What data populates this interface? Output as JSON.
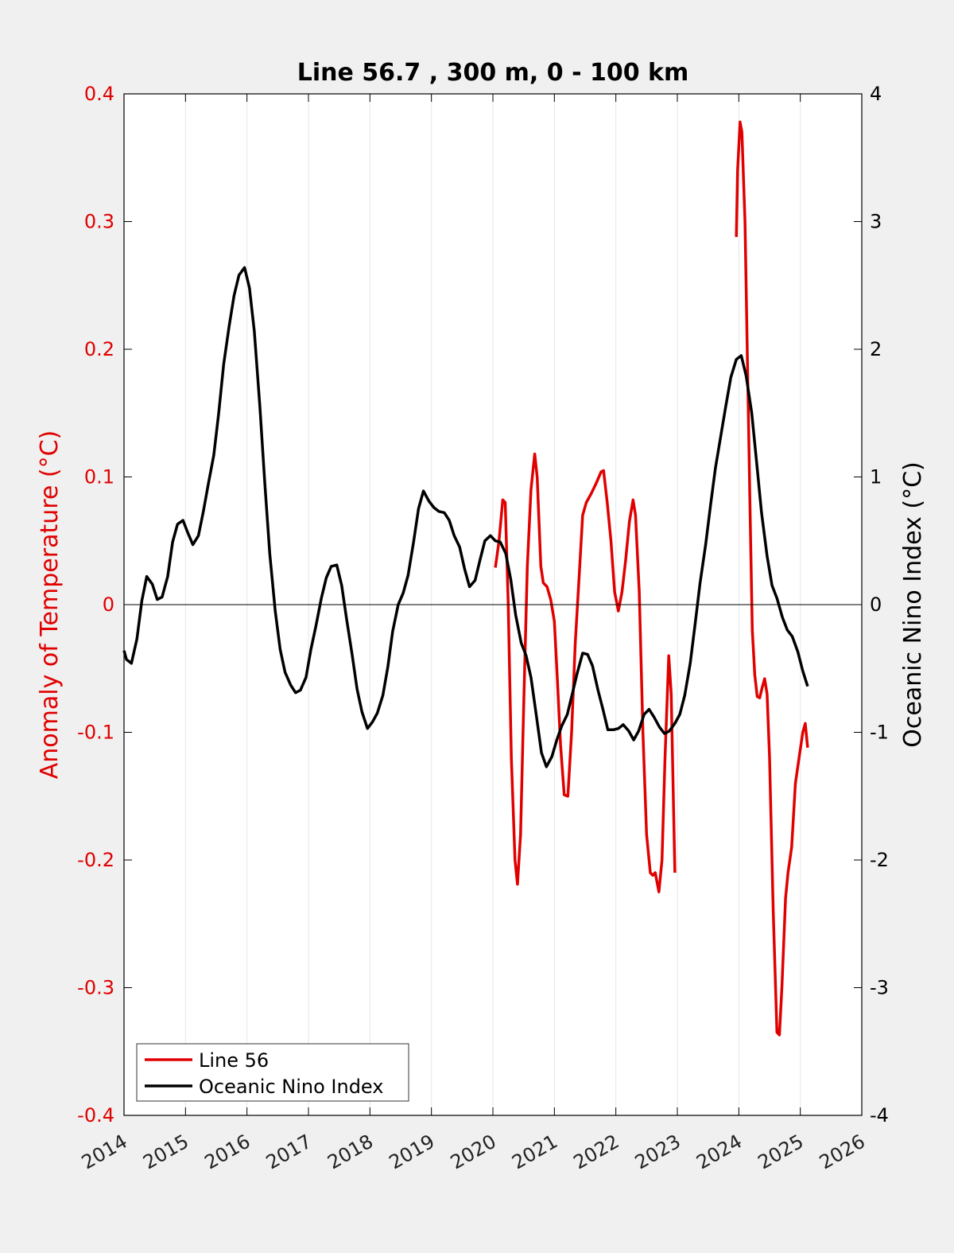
{
  "chart_data": {
    "type": "line",
    "title": "Line 56.7 , 300 m, 0 - 100 km",
    "xlabel": "",
    "xlim": [
      2014,
      2026
    ],
    "x_ticks": [
      "2014",
      "2015",
      "2016",
      "2017",
      "2018",
      "2019",
      "2020",
      "2021",
      "2022",
      "2023",
      "2024",
      "2025",
      "2026"
    ],
    "grid": "vertical",
    "legend_position": "bottom-left",
    "y_left": {
      "label": "Anomaly of Temperature (°C)",
      "ylim": [
        -0.4,
        0.4
      ],
      "ticks": [
        "-0.4",
        "-0.3",
        "-0.2",
        "-0.1",
        "0",
        "0.1",
        "0.2",
        "0.3",
        "0.4"
      ],
      "color": "#e00000"
    },
    "y_right": {
      "label": "Oceanic Nino Index (°C)",
      "ylim": [
        -4,
        4
      ],
      "ticks": [
        "-4",
        "-3",
        "-2",
        "-1",
        "0",
        "1",
        "2",
        "3",
        "4"
      ],
      "color": "#000000"
    },
    "series": [
      {
        "name": "Line 56",
        "axis": "left",
        "color": "#e00000",
        "segments": [
          [
            [
              2020.04,
              0.029
            ],
            [
              2020.1,
              0.05
            ],
            [
              2020.16,
              0.082
            ],
            [
              2020.2,
              0.08
            ],
            [
              2020.25,
              0.0
            ],
            [
              2020.3,
              -0.12
            ],
            [
              2020.36,
              -0.2
            ],
            [
              2020.4,
              -0.219
            ],
            [
              2020.45,
              -0.18
            ],
            [
              2020.5,
              -0.08
            ],
            [
              2020.56,
              0.03
            ],
            [
              2020.62,
              0.09
            ],
            [
              2020.68,
              0.118
            ],
            [
              2020.72,
              0.1
            ],
            [
              2020.78,
              0.03
            ],
            [
              2020.82,
              0.017
            ],
            [
              2020.88,
              0.014
            ],
            [
              2020.94,
              0.004
            ],
            [
              2021.0,
              -0.013
            ],
            [
              2021.05,
              -0.06
            ],
            [
              2021.1,
              -0.11
            ],
            [
              2021.16,
              -0.149
            ],
            [
              2021.22,
              -0.15
            ],
            [
              2021.28,
              -0.1
            ],
            [
              2021.34,
              -0.03
            ],
            [
              2021.4,
              0.02
            ],
            [
              2021.46,
              0.07
            ],
            [
              2021.52,
              0.08
            ],
            [
              2021.6,
              0.087
            ],
            [
              2021.68,
              0.095
            ],
            [
              2021.76,
              0.104
            ],
            [
              2021.8,
              0.105
            ],
            [
              2021.86,
              0.08
            ],
            [
              2021.92,
              0.05
            ],
            [
              2021.98,
              0.01
            ],
            [
              2022.04,
              -0.005
            ],
            [
              2022.1,
              0.01
            ],
            [
              2022.16,
              0.035
            ],
            [
              2022.22,
              0.065
            ],
            [
              2022.28,
              0.082
            ],
            [
              2022.32,
              0.07
            ],
            [
              2022.38,
              0.01
            ],
            [
              2022.44,
              -0.1
            ],
            [
              2022.5,
              -0.18
            ],
            [
              2022.56,
              -0.21
            ],
            [
              2022.6,
              -0.212
            ],
            [
              2022.64,
              -0.21
            ],
            [
              2022.7,
              -0.225
            ],
            [
              2022.75,
              -0.2
            ],
            [
              2022.8,
              -0.12
            ],
            [
              2022.86,
              -0.04
            ],
            [
              2022.9,
              -0.07
            ],
            [
              2022.96,
              -0.21
            ]
          ],
          [
            [
              2023.96,
              0.288
            ],
            [
              2023.98,
              0.34
            ],
            [
              2024.02,
              0.378
            ],
            [
              2024.05,
              0.37
            ],
            [
              2024.1,
              0.3
            ],
            [
              2024.14,
              0.19
            ],
            [
              2024.18,
              0.08
            ],
            [
              2024.22,
              -0.02
            ],
            [
              2024.26,
              -0.055
            ],
            [
              2024.3,
              -0.072
            ],
            [
              2024.34,
              -0.073
            ],
            [
              2024.38,
              -0.065
            ],
            [
              2024.42,
              -0.058
            ],
            [
              2024.46,
              -0.07
            ],
            [
              2024.5,
              -0.12
            ],
            [
              2024.56,
              -0.24
            ],
            [
              2024.62,
              -0.335
            ],
            [
              2024.66,
              -0.337
            ],
            [
              2024.7,
              -0.3
            ],
            [
              2024.76,
              -0.23
            ],
            [
              2024.8,
              -0.21
            ],
            [
              2024.86,
              -0.19
            ],
            [
              2024.92,
              -0.14
            ],
            [
              2024.98,
              -0.12
            ],
            [
              2025.04,
              -0.1
            ],
            [
              2025.08,
              -0.093
            ],
            [
              2025.12,
              -0.112
            ]
          ]
        ]
      },
      {
        "name": "Oceanic Nino Index",
        "axis": "right",
        "color": "#000000",
        "segments": [
          [
            [
              2014.0,
              -0.36
            ],
            [
              2014.04,
              -0.43
            ],
            [
              2014.12,
              -0.46
            ],
            [
              2014.21,
              -0.27
            ],
            [
              2014.29,
              0.03
            ],
            [
              2014.37,
              0.22
            ],
            [
              2014.46,
              0.16
            ],
            [
              2014.54,
              0.04
            ],
            [
              2014.62,
              0.06
            ],
            [
              2014.71,
              0.22
            ],
            [
              2014.79,
              0.49
            ],
            [
              2014.87,
              0.63
            ],
            [
              2014.96,
              0.66
            ],
            [
              2015.04,
              0.56
            ],
            [
              2015.12,
              0.47
            ],
            [
              2015.21,
              0.54
            ],
            [
              2015.29,
              0.73
            ],
            [
              2015.37,
              0.94
            ],
            [
              2015.46,
              1.17
            ],
            [
              2015.54,
              1.5
            ],
            [
              2015.62,
              1.88
            ],
            [
              2015.71,
              2.18
            ],
            [
              2015.79,
              2.42
            ],
            [
              2015.87,
              2.58
            ],
            [
              2015.96,
              2.64
            ],
            [
              2016.04,
              2.48
            ],
            [
              2016.12,
              2.14
            ],
            [
              2016.21,
              1.55
            ],
            [
              2016.29,
              0.95
            ],
            [
              2016.37,
              0.4
            ],
            [
              2016.46,
              -0.05
            ],
            [
              2016.54,
              -0.35
            ],
            [
              2016.62,
              -0.53
            ],
            [
              2016.71,
              -0.63
            ],
            [
              2016.79,
              -0.69
            ],
            [
              2016.87,
              -0.67
            ],
            [
              2016.96,
              -0.57
            ],
            [
              2017.04,
              -0.35
            ],
            [
              2017.12,
              -0.17
            ],
            [
              2017.21,
              0.05
            ],
            [
              2017.29,
              0.21
            ],
            [
              2017.37,
              0.3
            ],
            [
              2017.46,
              0.31
            ],
            [
              2017.54,
              0.15
            ],
            [
              2017.62,
              -0.11
            ],
            [
              2017.71,
              -0.39
            ],
            [
              2017.79,
              -0.66
            ],
            [
              2017.87,
              -0.84
            ],
            [
              2017.96,
              -0.97
            ],
            [
              2018.04,
              -0.92
            ],
            [
              2018.12,
              -0.85
            ],
            [
              2018.21,
              -0.71
            ],
            [
              2018.29,
              -0.49
            ],
            [
              2018.37,
              -0.21
            ],
            [
              2018.46,
              0.0
            ],
            [
              2018.54,
              0.09
            ],
            [
              2018.62,
              0.23
            ],
            [
              2018.71,
              0.49
            ],
            [
              2018.79,
              0.75
            ],
            [
              2018.87,
              0.89
            ],
            [
              2018.96,
              0.81
            ],
            [
              2019.04,
              0.76
            ],
            [
              2019.12,
              0.73
            ],
            [
              2019.21,
              0.72
            ],
            [
              2019.29,
              0.66
            ],
            [
              2019.37,
              0.54
            ],
            [
              2019.46,
              0.45
            ],
            [
              2019.54,
              0.28
            ],
            [
              2019.62,
              0.14
            ],
            [
              2019.71,
              0.19
            ],
            [
              2019.79,
              0.35
            ],
            [
              2019.87,
              0.5
            ],
            [
              2019.96,
              0.54
            ],
            [
              2020.04,
              0.5
            ],
            [
              2020.12,
              0.49
            ],
            [
              2020.21,
              0.4
            ],
            [
              2020.29,
              0.2
            ],
            [
              2020.37,
              -0.08
            ],
            [
              2020.46,
              -0.3
            ],
            [
              2020.54,
              -0.4
            ],
            [
              2020.62,
              -0.57
            ],
            [
              2020.71,
              -0.88
            ],
            [
              2020.79,
              -1.16
            ],
            [
              2020.87,
              -1.27
            ],
            [
              2020.96,
              -1.19
            ],
            [
              2021.04,
              -1.06
            ],
            [
              2021.12,
              -0.95
            ],
            [
              2021.21,
              -0.86
            ],
            [
              2021.29,
              -0.7
            ],
            [
              2021.37,
              -0.54
            ],
            [
              2021.46,
              -0.38
            ],
            [
              2021.54,
              -0.39
            ],
            [
              2021.62,
              -0.48
            ],
            [
              2021.71,
              -0.67
            ],
            [
              2021.79,
              -0.82
            ],
            [
              2021.87,
              -0.98
            ],
            [
              2021.96,
              -0.98
            ],
            [
              2022.04,
              -0.97
            ],
            [
              2022.12,
              -0.94
            ],
            [
              2022.21,
              -0.99
            ],
            [
              2022.29,
              -1.06
            ],
            [
              2022.37,
              -0.99
            ],
            [
              2022.46,
              -0.86
            ],
            [
              2022.54,
              -0.82
            ],
            [
              2022.62,
              -0.88
            ],
            [
              2022.71,
              -0.96
            ],
            [
              2022.79,
              -1.01
            ],
            [
              2022.87,
              -0.99
            ],
            [
              2022.96,
              -0.93
            ],
            [
              2023.04,
              -0.86
            ],
            [
              2023.12,
              -0.71
            ],
            [
              2023.21,
              -0.46
            ],
            [
              2023.29,
              -0.15
            ],
            [
              2023.37,
              0.17
            ],
            [
              2023.46,
              0.47
            ],
            [
              2023.54,
              0.78
            ],
            [
              2023.62,
              1.07
            ],
            [
              2023.71,
              1.33
            ],
            [
              2023.79,
              1.56
            ],
            [
              2023.87,
              1.78
            ],
            [
              2023.96,
              1.92
            ],
            [
              2024.04,
              1.95
            ],
            [
              2024.12,
              1.79
            ],
            [
              2024.21,
              1.5
            ],
            [
              2024.29,
              1.11
            ],
            [
              2024.37,
              0.72
            ],
            [
              2024.46,
              0.38
            ],
            [
              2024.54,
              0.15
            ],
            [
              2024.62,
              0.05
            ],
            [
              2024.71,
              -0.1
            ],
            [
              2024.79,
              -0.2
            ],
            [
              2024.87,
              -0.25
            ],
            [
              2024.96,
              -0.37
            ],
            [
              2025.04,
              -0.52
            ],
            [
              2025.12,
              -0.64
            ]
          ]
        ]
      }
    ]
  }
}
